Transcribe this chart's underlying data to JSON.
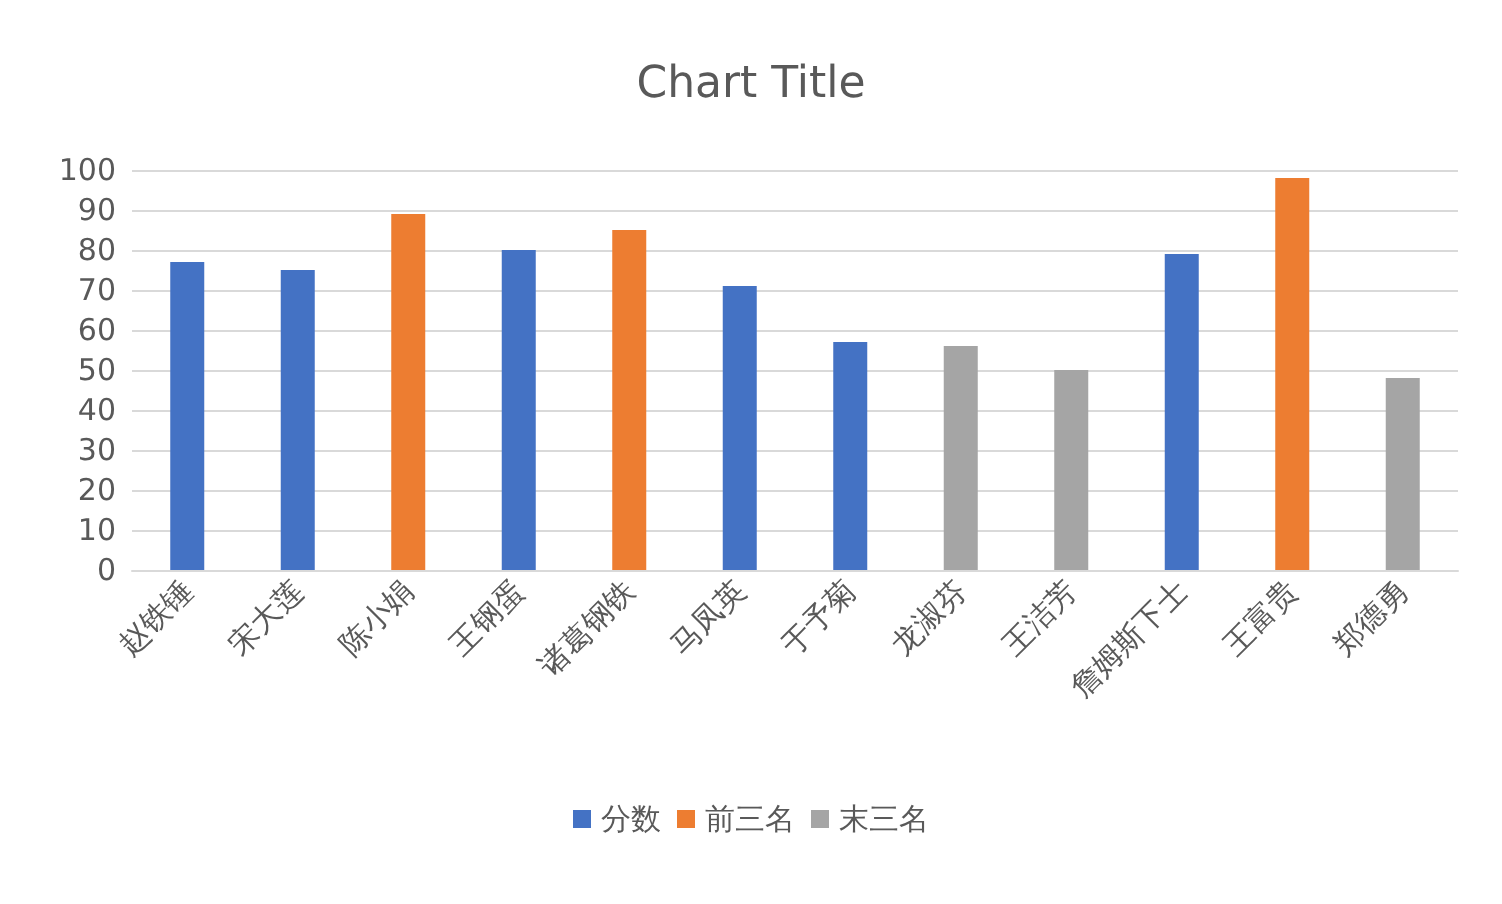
{
  "chart_data": {
    "type": "bar",
    "title": "Chart Title",
    "categories": [
      "赵铁锤",
      "宋大莲",
      "陈小娟",
      "王钢蛋",
      "诸葛钢铁",
      "马凤英",
      "于予菊",
      "龙淑芬",
      "王洁芳",
      "詹姆斯下士",
      "王富贵",
      "郑德勇"
    ],
    "series": [
      {
        "name": "分数",
        "color": "#4472c4",
        "values": [
          77,
          75,
          null,
          80,
          null,
          71,
          57,
          null,
          null,
          79,
          null,
          null
        ]
      },
      {
        "name": "前三名",
        "color": "#ed7d31",
        "values": [
          null,
          null,
          89,
          null,
          85,
          null,
          null,
          null,
          null,
          null,
          98,
          null
        ]
      },
      {
        "name": "末三名",
        "color": "#a5a5a5",
        "values": [
          null,
          null,
          null,
          null,
          null,
          null,
          null,
          56,
          50,
          null,
          null,
          48
        ]
      }
    ],
    "ylim": [
      0,
      100
    ],
    "yticks": [
      0,
      10,
      20,
      30,
      40,
      50,
      60,
      70,
      80,
      90,
      100
    ],
    "grid": "y",
    "legend": "bottom"
  }
}
